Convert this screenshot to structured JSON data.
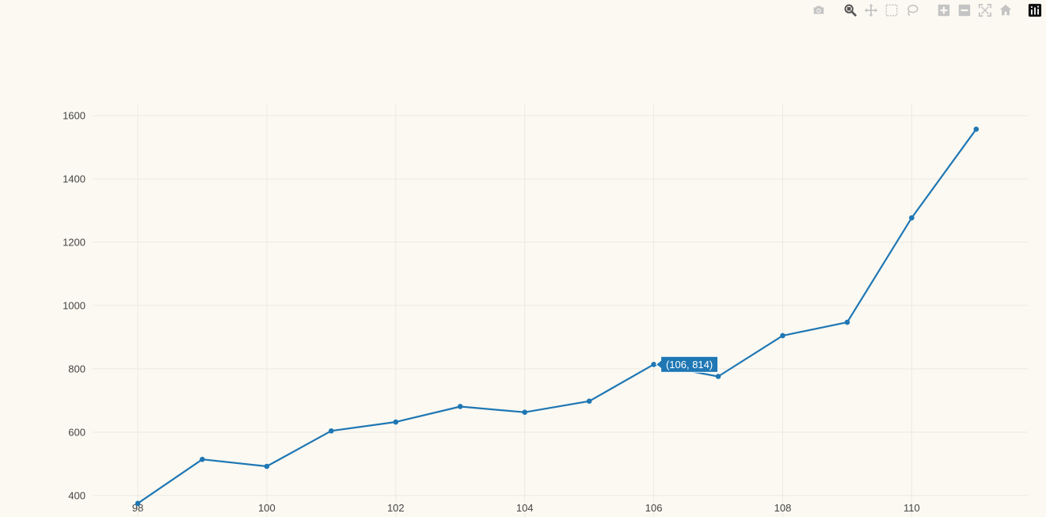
{
  "modebar": {
    "buttons": [
      {
        "name": "camera-icon",
        "group": 0,
        "active": false
      },
      {
        "name": "zoom-icon",
        "group": 1,
        "active": true
      },
      {
        "name": "pan-icon",
        "group": 1,
        "active": false
      },
      {
        "name": "box-select-icon",
        "group": 1,
        "active": false
      },
      {
        "name": "lasso-select-icon",
        "group": 1,
        "active": false
      },
      {
        "name": "zoom-in-icon",
        "group": 2,
        "active": false
      },
      {
        "name": "zoom-out-icon",
        "group": 2,
        "active": false
      },
      {
        "name": "autoscale-icon",
        "group": 2,
        "active": false
      },
      {
        "name": "reset-axes-icon",
        "group": 2,
        "active": false
      },
      {
        "name": "plotly-logo-icon",
        "group": 3,
        "active": false
      }
    ],
    "icon_color": "#c4c4c4",
    "active_color": "#555555"
  },
  "chart_data": {
    "type": "line",
    "x": [
      98,
      99,
      100,
      101,
      102,
      103,
      104,
      105,
      106,
      107,
      108,
      109,
      110,
      111
    ],
    "series": [
      {
        "values": [
          375,
          514,
          492,
          604,
          632,
          681,
          663,
          698,
          814,
          776,
          905,
          947,
          1277,
          1557
        ],
        "color": "#1f77b4"
      }
    ],
    "xlabel": "",
    "ylabel": "",
    "xlim": [
      97.3,
      111.8
    ],
    "ylim": [
      332,
      1635
    ],
    "xticks": [
      98,
      100,
      102,
      104,
      106,
      108,
      110
    ],
    "yticks": [
      400,
      600,
      800,
      1000,
      1200,
      1400,
      1600
    ],
    "grid": true,
    "legend": "none",
    "hover": {
      "label": "(106, 814)",
      "x": 106,
      "y": 814
    },
    "colors": {
      "background": "#fcf9f2",
      "grid": "#ece9e2",
      "zeroline": "#e0ddd6",
      "line": "#1f77b4",
      "tick_text": "#444444"
    }
  }
}
